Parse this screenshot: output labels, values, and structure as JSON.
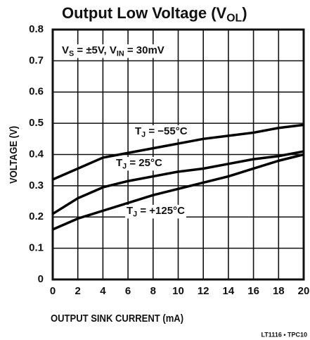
{
  "chart_data": {
    "type": "line",
    "title_parts": [
      "Output Low Voltage (V",
      "OL",
      ")"
    ],
    "condition_parts": [
      "V",
      "S",
      " = ±5V, V",
      "IN",
      " = 30mV"
    ],
    "xlabel": "OUTPUT SINK CURRENT (mA)",
    "ylabel": "VOLTAGE (V)",
    "footer": "LT1116 • TPC10",
    "x": [
      0,
      2,
      4,
      6,
      8,
      10,
      12,
      14,
      16,
      18,
      20
    ],
    "series": [
      {
        "label_parts": [
          "T",
          "J",
          " = −55°C"
        ],
        "color": "#000000",
        "values": [
          0.32,
          0.355,
          0.39,
          0.405,
          0.42,
          0.435,
          0.45,
          0.46,
          0.47,
          0.485,
          0.495
        ]
      },
      {
        "label_parts": [
          "T",
          "J",
          " = 25°C"
        ],
        "color": "#000000",
        "values": [
          0.21,
          0.26,
          0.295,
          0.315,
          0.33,
          0.345,
          0.355,
          0.37,
          0.385,
          0.395,
          0.41
        ]
      },
      {
        "label_parts": [
          "T",
          "J",
          " = +125°C"
        ],
        "color": "#000000",
        "values": [
          0.16,
          0.195,
          0.22,
          0.245,
          0.27,
          0.29,
          0.31,
          0.33,
          0.355,
          0.38,
          0.4
        ]
      }
    ],
    "xlim": [
      0,
      20
    ],
    "xticks": [
      0,
      2,
      4,
      6,
      8,
      10,
      12,
      14,
      16,
      18,
      20
    ],
    "ylim": [
      0,
      0.8
    ],
    "yticks": [
      0,
      0.1,
      0.2,
      0.3,
      0.4,
      0.5,
      0.6,
      0.7,
      0.8
    ],
    "grid": true
  }
}
